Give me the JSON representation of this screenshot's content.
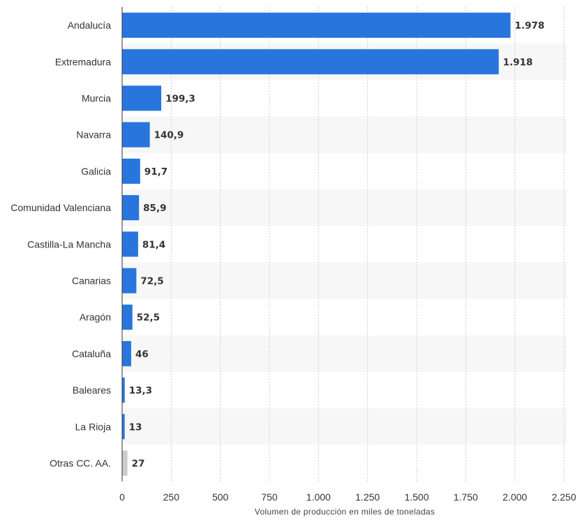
{
  "chart_data": {
    "type": "bar",
    "orientation": "horizontal",
    "categories": [
      "Andalucía",
      "Extremadura",
      "Murcia",
      "Navarra",
      "Galicia",
      "Comunidad Valenciana",
      "Castilla-La Mancha",
      "Canarias",
      "Aragón",
      "Cataluña",
      "Baleares",
      "La Rioja",
      "Otras CC. AA."
    ],
    "values": [
      1978,
      1918,
      199.3,
      140.9,
      91.7,
      85.9,
      81.4,
      72.5,
      52.5,
      46,
      13.3,
      13,
      27
    ],
    "value_labels": [
      "1.978",
      "1.918",
      "199,3",
      "140,9",
      "91,7",
      "85,9",
      "81,4",
      "72,5",
      "52,5",
      "46",
      "13,3",
      "13",
      "27"
    ],
    "title": "",
    "xlabel": "Volumen de producción en miles de toneladas",
    "ylabel": "",
    "xlim": [
      0,
      2250
    ],
    "xticks": [
      0,
      250,
      500,
      750,
      1000,
      1250,
      1500,
      1750,
      2000,
      2250
    ],
    "xtick_labels": [
      "0",
      "250",
      "500",
      "750",
      "1.000",
      "1.250",
      "1.500",
      "1.750",
      "2.000",
      "2.250"
    ],
    "grid": "vertical dashed",
    "alternating_row_bands": true,
    "colors": {
      "bar": "#2876dd",
      "bar_other": "#cccccc",
      "band": "#f7f7f7",
      "grid": "#cccccc",
      "axis": "#333333",
      "text": "#333333"
    }
  }
}
